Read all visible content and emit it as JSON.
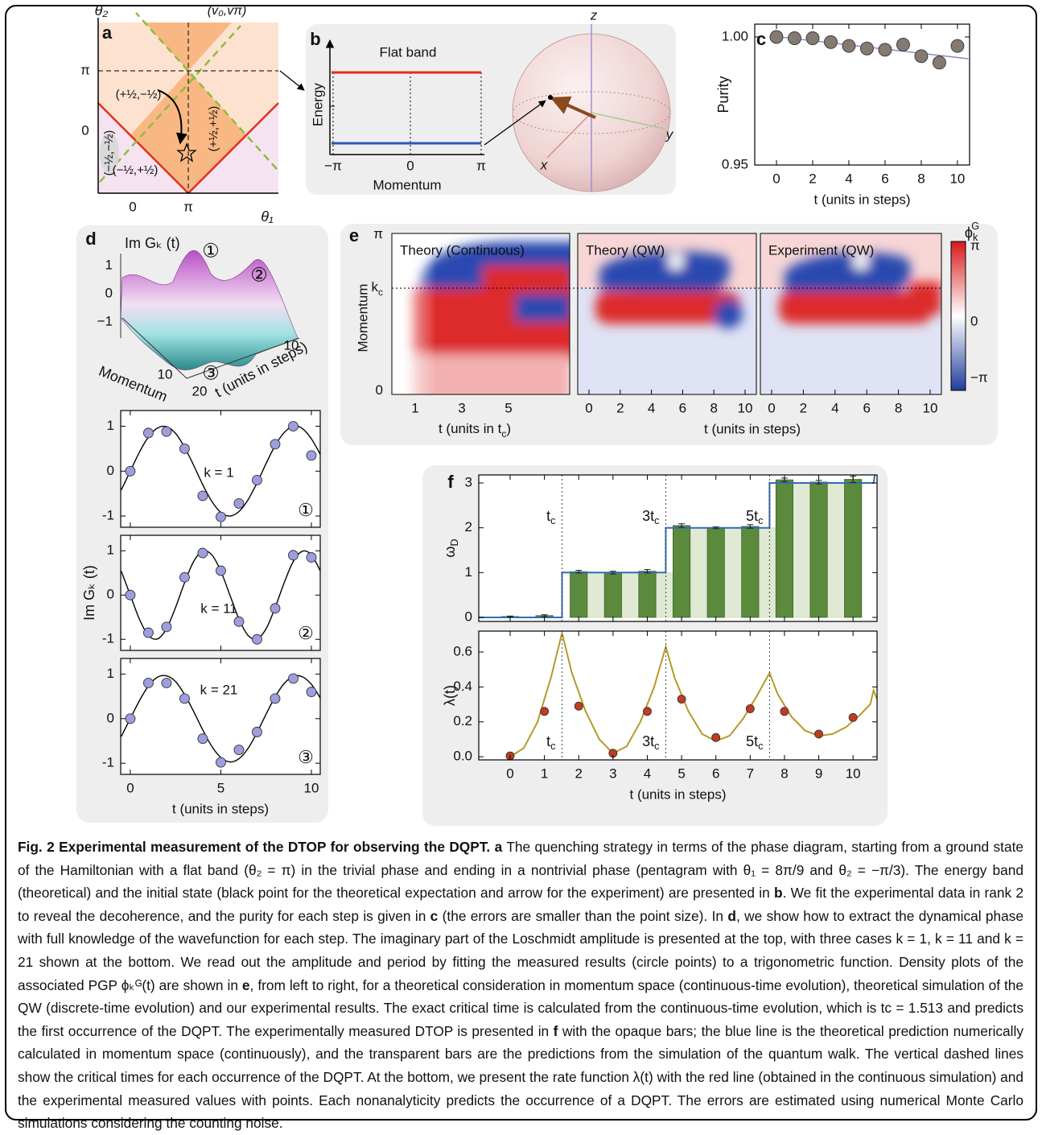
{
  "panel_a": {
    "letter": "a",
    "y_label": "θ₂",
    "x_label": "θ₁",
    "corner_label": "(v₀,vπ)",
    "y_ticks": [
      "π",
      "0"
    ],
    "x_ticks": [
      "0",
      "π"
    ],
    "regions": [
      "(+½,−½)",
      "(−½,−½)",
      "(+½,+½)",
      "(−½,+½)"
    ]
  },
  "panel_b": {
    "letter": "b",
    "title": "Flat band",
    "y_label": "Energy",
    "x_label": "Momentum",
    "x_ticks": [
      "−π",
      "0",
      "π"
    ],
    "axes": [
      "z",
      "x",
      "y"
    ]
  },
  "panel_d_surface": {
    "letter": "d",
    "z_label": "Im Gₖ (t)",
    "z_ticks": [
      "1",
      "0",
      "−1"
    ],
    "momentum_label": "Momentum",
    "momentum_ticks": [
      "10",
      "20"
    ],
    "t_label": "t (units in steps)",
    "t_ticks": [
      "10"
    ],
    "markers": [
      "①",
      "②",
      "③"
    ]
  },
  "panel_e": {
    "letter": "e",
    "titles": [
      "Theory (Continuous)",
      "Theory (QW)",
      "Experiment (QW)"
    ],
    "y_label": "Momentum",
    "y_ticks": [
      {
        "text": "π"
      },
      {
        "text": "k",
        "sub": "c"
      },
      {
        "text": "0"
      }
    ],
    "x_ticks_continuous": [
      "1",
      "3",
      "5"
    ],
    "x_ticks_steps": [
      "0",
      "2",
      "4",
      "6",
      "8",
      "10"
    ],
    "x_label_continuous": {
      "text": "t (units in t",
      "sub": "c",
      "after": ")"
    },
    "x_label_steps": "t (units in steps)",
    "colorbar": {
      "label": {
        "text": "ϕ",
        "sub": "k",
        "sup": "G"
      },
      "ticks": [
        "π",
        "0",
        "−π"
      ]
    }
  },
  "chart_data": [
    {
      "type": "scatter",
      "panel": "c",
      "y_label": "Purity",
      "x_label": "t (units in steps)",
      "color": "#857a72",
      "x": [
        0,
        1,
        2,
        3,
        4,
        5,
        6,
        7,
        8,
        9,
        10
      ],
      "values": [
        1.0,
        0.9995,
        0.9995,
        0.998,
        0.9965,
        0.9955,
        0.995,
        0.997,
        0.9925,
        0.99,
        0.9965
      ],
      "fit": {
        "color": "#8f86c8",
        "x": [
          -0.2,
          10.6
        ],
        "values": [
          1.0003,
          0.9915
        ]
      },
      "xlim": [
        -1.2,
        10.67
      ],
      "ylim": [
        0.95,
        1.005
      ],
      "xticks": [
        0,
        2,
        4,
        6,
        8,
        10
      ],
      "yticks": [
        0.95,
        {
          "value": 1,
          "label": "1.00"
        }
      ]
    },
    {
      "type": "scatter",
      "annotation": "k = 1",
      "marker": "①",
      "color": "#9d9de0",
      "x": [
        0,
        1,
        2,
        3,
        4,
        5,
        6,
        7,
        8,
        9,
        10
      ],
      "values": [
        0,
        0.85,
        0.88,
        0.5,
        -0.55,
        -1.02,
        -0.72,
        -0.2,
        0.6,
        1.0,
        0.35
      ],
      "errors": [
        0.03,
        0.04,
        0.05,
        0.03,
        0.03,
        0.04,
        0.04,
        0.06,
        0.03,
        0.04,
        0.05
      ],
      "fit": {
        "color": "#000000",
        "x": [
          -0.5,
          0,
          0.5,
          1,
          1.5,
          2,
          2.5,
          3,
          3.5,
          4,
          4.5,
          5,
          5.5,
          6,
          6.5,
          7,
          7.5,
          8,
          8.5,
          9,
          9.5,
          10,
          10.5
        ],
        "values": [
          -0.42,
          0,
          0.42,
          0.76,
          0.96,
          0.99,
          0.84,
          0.53,
          0.13,
          -0.3,
          -0.67,
          -0.92,
          -1.0,
          -0.9,
          -0.64,
          -0.26,
          0.17,
          0.57,
          0.86,
          1.0,
          0.95,
          0.72,
          0.37
        ]
      },
      "xlim": [
        -0.53,
        10.49
      ],
      "ylim": [
        -1.25,
        1.35
      ],
      "xticks": [
        0,
        5,
        10
      ],
      "yticks": [
        -1,
        0,
        1
      ]
    },
    {
      "type": "scatter",
      "annotation": "k = 11",
      "marker": "②",
      "color": "#9d9de0",
      "y_label": "Im Gₖ (t)",
      "x": [
        0,
        1,
        2,
        3,
        4,
        5,
        6,
        7,
        8,
        9,
        10
      ],
      "values": [
        0,
        -0.85,
        -0.72,
        0.4,
        0.95,
        0.55,
        -0.6,
        -1.0,
        -0.3,
        0.9,
        0.85
      ],
      "errors": [
        0.03,
        0.05,
        0.03,
        0.04,
        0.06,
        0.03,
        0.03,
        0.04,
        0.04,
        0.05,
        0.06
      ],
      "fit": {
        "color": "#000000",
        "x": [
          -0.5,
          0,
          0.5,
          1,
          1.5,
          2,
          2.5,
          3,
          3.5,
          4,
          4.5,
          5,
          5.5,
          6,
          6.5,
          7,
          7.5,
          8,
          8.5,
          9,
          9.5,
          10,
          10.5
        ],
        "values": [
          0.54,
          0,
          -0.54,
          -0.91,
          -0.99,
          -0.76,
          -0.28,
          0.28,
          0.76,
          0.99,
          0.91,
          0.54,
          0,
          -0.54,
          -0.91,
          -0.99,
          -0.76,
          -0.28,
          0.28,
          0.76,
          0.99,
          0.91,
          0.54
        ]
      },
      "xlim": [
        -0.53,
        10.49
      ],
      "ylim": [
        -1.25,
        1.35
      ],
      "xticks": [
        0,
        5,
        10
      ],
      "yticks": [
        -1,
        0,
        1
      ]
    },
    {
      "type": "scatter",
      "annotation": "k = 21",
      "marker": "③",
      "color": "#9d9de0",
      "x_label": "t (units in steps)",
      "x": [
        0,
        1,
        2,
        3,
        4,
        5,
        6,
        7,
        8,
        9,
        10
      ],
      "values": [
        0,
        0.8,
        0.8,
        0.45,
        -0.45,
        -0.98,
        -0.7,
        -0.3,
        0.45,
        0.9,
        0.6
      ],
      "errors": [
        0.03,
        0.05,
        0.06,
        0.03,
        0.04,
        0.04,
        0.03,
        0.03,
        0.04,
        0.05,
        0.04
      ],
      "fit": {
        "color": "#000000",
        "x": [
          -0.5,
          0,
          0.5,
          1,
          1.5,
          2,
          2.5,
          3,
          3.5,
          4,
          4.5,
          5,
          5.5,
          6,
          6.5,
          7,
          7.5,
          8,
          8.5,
          9,
          9.5,
          10,
          10.5
        ],
        "values": [
          -0.4,
          0,
          0.4,
          0.73,
          0.93,
          0.96,
          0.83,
          0.54,
          0.16,
          -0.25,
          -0.62,
          -0.87,
          -0.97,
          -0.9,
          -0.67,
          -0.31,
          0.1,
          0.49,
          0.79,
          0.95,
          0.94,
          0.77,
          0.46
        ]
      },
      "xlim": [
        -0.53,
        10.49
      ],
      "ylim": [
        -1.25,
        1.35
      ],
      "xticks": [
        0,
        5,
        10
      ],
      "yticks": [
        -1,
        0,
        1
      ]
    },
    {
      "type": "bar",
      "panel": "f",
      "y_label": {
        "text": "ω",
        "sub": "D"
      },
      "color": "#5b8a3c",
      "x": [
        0,
        1,
        2,
        3,
        4,
        5,
        6,
        7,
        8,
        9,
        10
      ],
      "values": [
        0.02,
        0.04,
        1.02,
        1.0,
        1.03,
        2.05,
        2.0,
        2.03,
        3.07,
        3.02,
        3.08
      ],
      "errors": [
        0.01,
        0.02,
        0.03,
        0.03,
        0.04,
        0.04,
        0.02,
        0.04,
        0.04,
        0.04,
        0.07
      ],
      "qw": {
        "color": "#dfe9d3",
        "x": [
          0.5,
          1.5,
          2.5,
          3.5,
          4.5,
          5.5,
          6.5,
          7.5,
          8.5,
          9.5
        ],
        "values": [
          0,
          0,
          1,
          1,
          1,
          2,
          2,
          2,
          3,
          3
        ]
      },
      "theory": {
        "color": "#2f6db5",
        "x": [
          -0.915,
          1.513,
          1.513,
          4.539,
          4.539,
          7.565,
          7.565,
          10.6,
          10.7
        ],
        "values": [
          0,
          0,
          1,
          1,
          2,
          2,
          3,
          3,
          3.5
        ]
      },
      "critical": {
        "x": [
          1.513,
          4.539,
          7.565
        ],
        "labels": [
          {
            "text": "t",
            "sub": "c"
          },
          {
            "text": "3t",
            "sub": "c"
          },
          {
            "text": "5t",
            "sub": "c"
          }
        ]
      },
      "xlim": [
        -0.915,
        10.7
      ],
      "ylim": [
        -0.09,
        3.18
      ],
      "xticks": [
        0,
        1,
        2,
        3,
        4,
        5,
        6,
        7,
        8,
        9,
        10
      ],
      "yticks": [
        0,
        1,
        2,
        3
      ]
    },
    {
      "type": "scatter",
      "y_label": {
        "text": "λ(t)"
      },
      "x_label": "t (units in steps)",
      "color": "#c23b22",
      "x": [
        0,
        1,
        2,
        3,
        4,
        5,
        6,
        7,
        8,
        9,
        10
      ],
      "values": [
        0.005,
        0.26,
        0.29,
        0.02,
        0.26,
        0.33,
        0.11,
        0.275,
        0.26,
        0.13,
        0.225
      ],
      "errors": [
        0.005,
        0.01,
        0.01,
        0.01,
        0.01,
        0.015,
        0.01,
        0.015,
        0.01,
        0.01,
        0.01
      ],
      "rate": {
        "color": "#b59a2a",
        "x": [
          0,
          0.4,
          0.8,
          1.2,
          1.513,
          1.8,
          2.2,
          2.6,
          3.0,
          3.4,
          3.8,
          4.2,
          4.539,
          4.8,
          5.2,
          5.6,
          6.0,
          6.4,
          6.8,
          7.2,
          7.565,
          7.8,
          8.2,
          8.6,
          9.0,
          9.4,
          9.8,
          10.2,
          10.5,
          10.6,
          10.7
        ],
        "values": [
          0,
          0.05,
          0.2,
          0.46,
          0.71,
          0.48,
          0.26,
          0.1,
          0.02,
          0.06,
          0.2,
          0.4,
          0.63,
          0.45,
          0.26,
          0.13,
          0.09,
          0.12,
          0.22,
          0.35,
          0.48,
          0.36,
          0.23,
          0.15,
          0.12,
          0.13,
          0.17,
          0.24,
          0.3,
          0.38,
          0.33
        ]
      },
      "critical": {
        "x": [
          1.513,
          4.539,
          7.565
        ],
        "labels": [
          {
            "text": "t",
            "sub": "c"
          },
          {
            "text": "3t",
            "sub": "c"
          },
          {
            "text": "5t",
            "sub": "c"
          }
        ]
      },
      "xlim": [
        -0.915,
        10.7
      ],
      "ylim": [
        -0.018,
        0.72
      ],
      "xticks": [
        0,
        1,
        2,
        3,
        4,
        5,
        6,
        7,
        8,
        9,
        10
      ],
      "yticks": [
        {
          "value": 0,
          "label": "0.0"
        },
        {
          "value": 0.2,
          "label": "0.2"
        },
        {
          "value": 0.4,
          "label": "0.4"
        },
        {
          "value": 0.6,
          "label": "0.6"
        }
      ]
    }
  ],
  "caption": [
    {
      "text": "Fig. 2 Experimental measurement of the DTOP for observing the DQPT.",
      "bold": true
    },
    {
      "text": " "
    },
    {
      "text": "a",
      "bold": true
    },
    {
      "text": " The quenching strategy in terms of the phase diagram, starting from a ground state of the Hamiltonian with a flat band (θ₂ = π) in the trivial phase and ending in a nontrivial phase (pentagram with θ₁ = 8π/9 and θ₂ = −π/3). The energy band (theoretical) and the initial state (black point for the theoretical expectation and arrow for the experiment) are presented in "
    },
    {
      "text": "b",
      "bold": true
    },
    {
      "text": ". We fit the experimental data in rank 2 to reveal the decoherence, and the purity for each step is given in "
    },
    {
      "text": "c",
      "bold": true
    },
    {
      "text": " (the errors are smaller than the point size). In "
    },
    {
      "text": "d",
      "bold": true
    },
    {
      "text": ", we show how to extract the dynamical phase with full knowledge of the wavefunction for each step. The imaginary part of the Loschmidt amplitude is presented at the top, with three cases k = 1, k = 11 and k = 21 shown at the bottom. We read out the amplitude and period by fitting the measured results (circle points) to a trigonometric function. Density plots of the associated PGP ϕₖᴳ(t) are shown in "
    },
    {
      "text": "e",
      "bold": true
    },
    {
      "text": ", from left to right, for a theoretical consideration in momentum space (continuous-time evolution), theoretical simulation of the QW (discrete-time evolution) and our experimental results. The exact critical time is calculated from the continuous-time evolution, which is tc = 1.513 and predicts the first occurrence of the DQPT. The experimentally measured DTOP is presented in "
    },
    {
      "text": "f",
      "bold": true
    },
    {
      "text": " with the opaque bars; the blue line is the theoretical prediction numerically calculated in momentum space (continuously), and the transparent bars are the predictions from the simulation of the quantum walk. The vertical dashed lines show the critical times for each occurrence of the DQPT. At the bottom, we present the rate function λ(t) with the red line (obtained in the continuous simulation) and the experimental measured values with points. Each nonanalyticity predicts the occurrence of a DQPT. The errors are estimated using numerical Monte Carlo simulations considering the counting noise."
    }
  ]
}
